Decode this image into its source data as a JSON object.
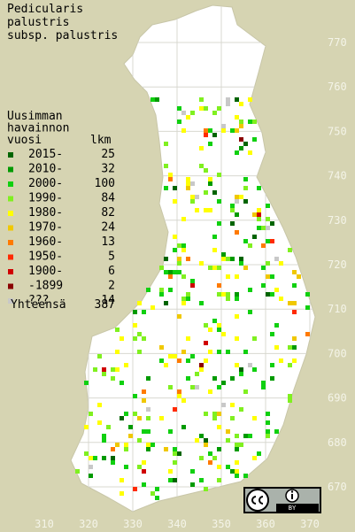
{
  "map": {
    "title": [
      "Pedicularis",
      "palustris",
      "subsp. palustris"
    ],
    "legend": {
      "heading": [
        "Uusimman",
        "havainnon",
        "vuosi"
      ],
      "count_heading": "lkm",
      "entries": [
        {
          "label": "2015-",
          "count": 25,
          "color": "#006400"
        },
        {
          "label": "2010-",
          "count": 32,
          "color": "#009a00"
        },
        {
          "label": "2000-",
          "count": 100,
          "color": "#10d010"
        },
        {
          "label": "1990-",
          "count": 84,
          "color": "#80f020"
        },
        {
          "label": "1980-",
          "count": 82,
          "color": "#ffff00"
        },
        {
          "label": "1970-",
          "count": 24,
          "color": "#f0c800"
        },
        {
          "label": "1960-",
          "count": 13,
          "color": "#ff7a00"
        },
        {
          "label": "1950-",
          "count": 5,
          "color": "#ff2a00"
        },
        {
          "label": "1900-",
          "count": 6,
          "color": "#d00000"
        },
        {
          "label": "-1899",
          "count": 2,
          "color": "#8a0000"
        },
        {
          "label": "???",
          "count": 14,
          "color": "#c8c8c8"
        }
      ],
      "total_label": "Yhteensä",
      "total": 387
    },
    "yticks": [
      770,
      760,
      750,
      740,
      730,
      720,
      710,
      700,
      690,
      680,
      670
    ],
    "xticks": [
      310,
      320,
      330,
      340,
      350,
      360,
      370
    ],
    "license": "BY"
  }
}
